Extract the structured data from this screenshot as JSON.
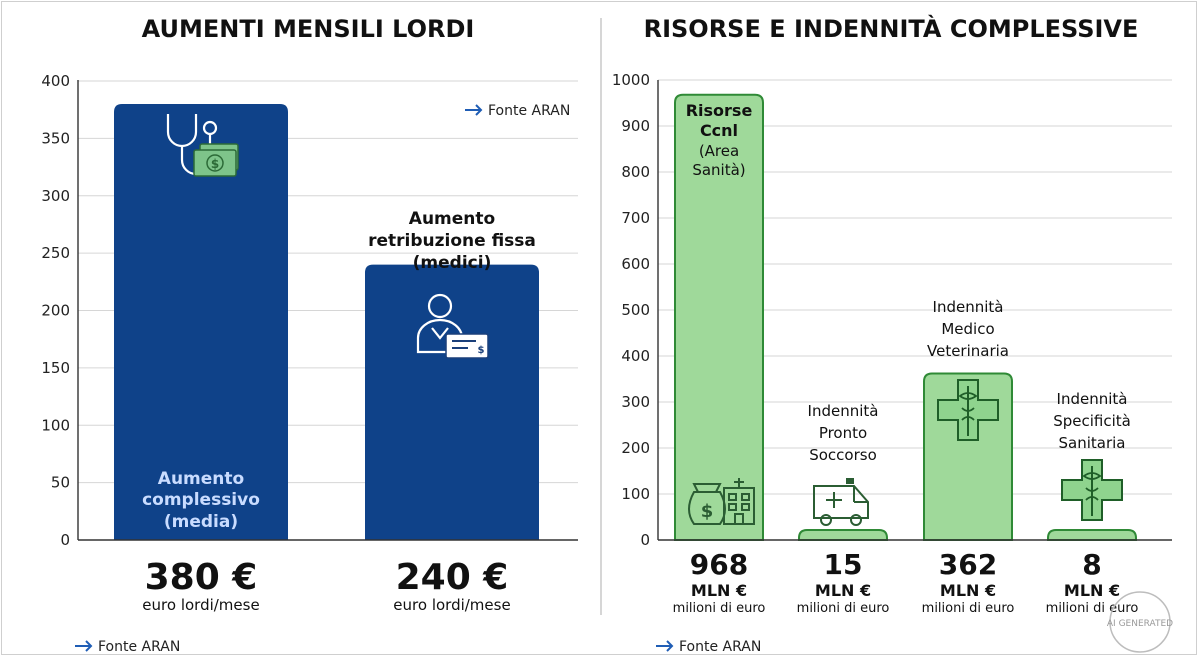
{
  "chart_data": [
    {
      "type": "bar",
      "title": "AUMENTI MENSILI LORDI",
      "ylim": [
        0,
        400
      ],
      "yticks": [
        0,
        50,
        100,
        150,
        200,
        250,
        300,
        350,
        400
      ],
      "grid": true,
      "categories": [
        "Aumento complessivo (media)",
        "Aumento retribuzione fissa (medici)"
      ],
      "values": [
        380,
        240
      ],
      "bar_labels": [
        [
          "Aumento",
          "complessivo",
          "(media)"
        ],
        [
          "Aumento",
          "retribuzione fissa",
          "(medici)"
        ]
      ],
      "value_labels": [
        "380 €",
        "240 €"
      ],
      "unit_labels": [
        "euro lordi/mese",
        "euro lordi/mese"
      ],
      "icons": [
        "stethoscope-money-icon",
        "doctor-check-icon"
      ],
      "source_top": "Fonte ARAN",
      "source_bottom": "Fonte ARAN",
      "color": "#0f4289"
    },
    {
      "type": "bar",
      "title": "RISORSE E INDENNITÀ COMPLESSIVE",
      "ylim": [
        0,
        1000
      ],
      "yticks": [
        0,
        100,
        200,
        300,
        400,
        500,
        600,
        700,
        800,
        900,
        1000
      ],
      "grid": true,
      "categories": [
        "Risorse Ccnl (Area Sanità)",
        "Indennità Pronto Soccorso",
        "Indennità Medico Veterinaria",
        "Indennità Specificità Sanitaria"
      ],
      "values": [
        968,
        15,
        362,
        8
      ],
      "bar_labels": [
        [
          "Risorse",
          "Ccnl",
          "(Area",
          "Sanità)"
        ],
        [
          "Indennità",
          "Pronto",
          "Soccorso"
        ],
        [
          "Indennità",
          "Medico",
          "Veterinaria"
        ],
        [
          "Indennità",
          "Specificità",
          "Sanitaria"
        ]
      ],
      "value_labels": [
        "968",
        "15",
        "362",
        "8"
      ],
      "unit_labels": [
        "MLN €",
        "MLN €",
        "MLN €",
        "MLN €"
      ],
      "sub_labels": [
        "milioni di euro",
        "milioni di euro",
        "milioni di euro",
        "milioni di euro"
      ],
      "icons": [
        "money-bag-hospital-icon",
        "ambulance-icon",
        "caduceus-cross-icon",
        "caduceus-cross-icon"
      ],
      "source_bottom": "Fonte ARAN",
      "color": "#9fd99a"
    }
  ],
  "watermark": "AI GENERATED"
}
